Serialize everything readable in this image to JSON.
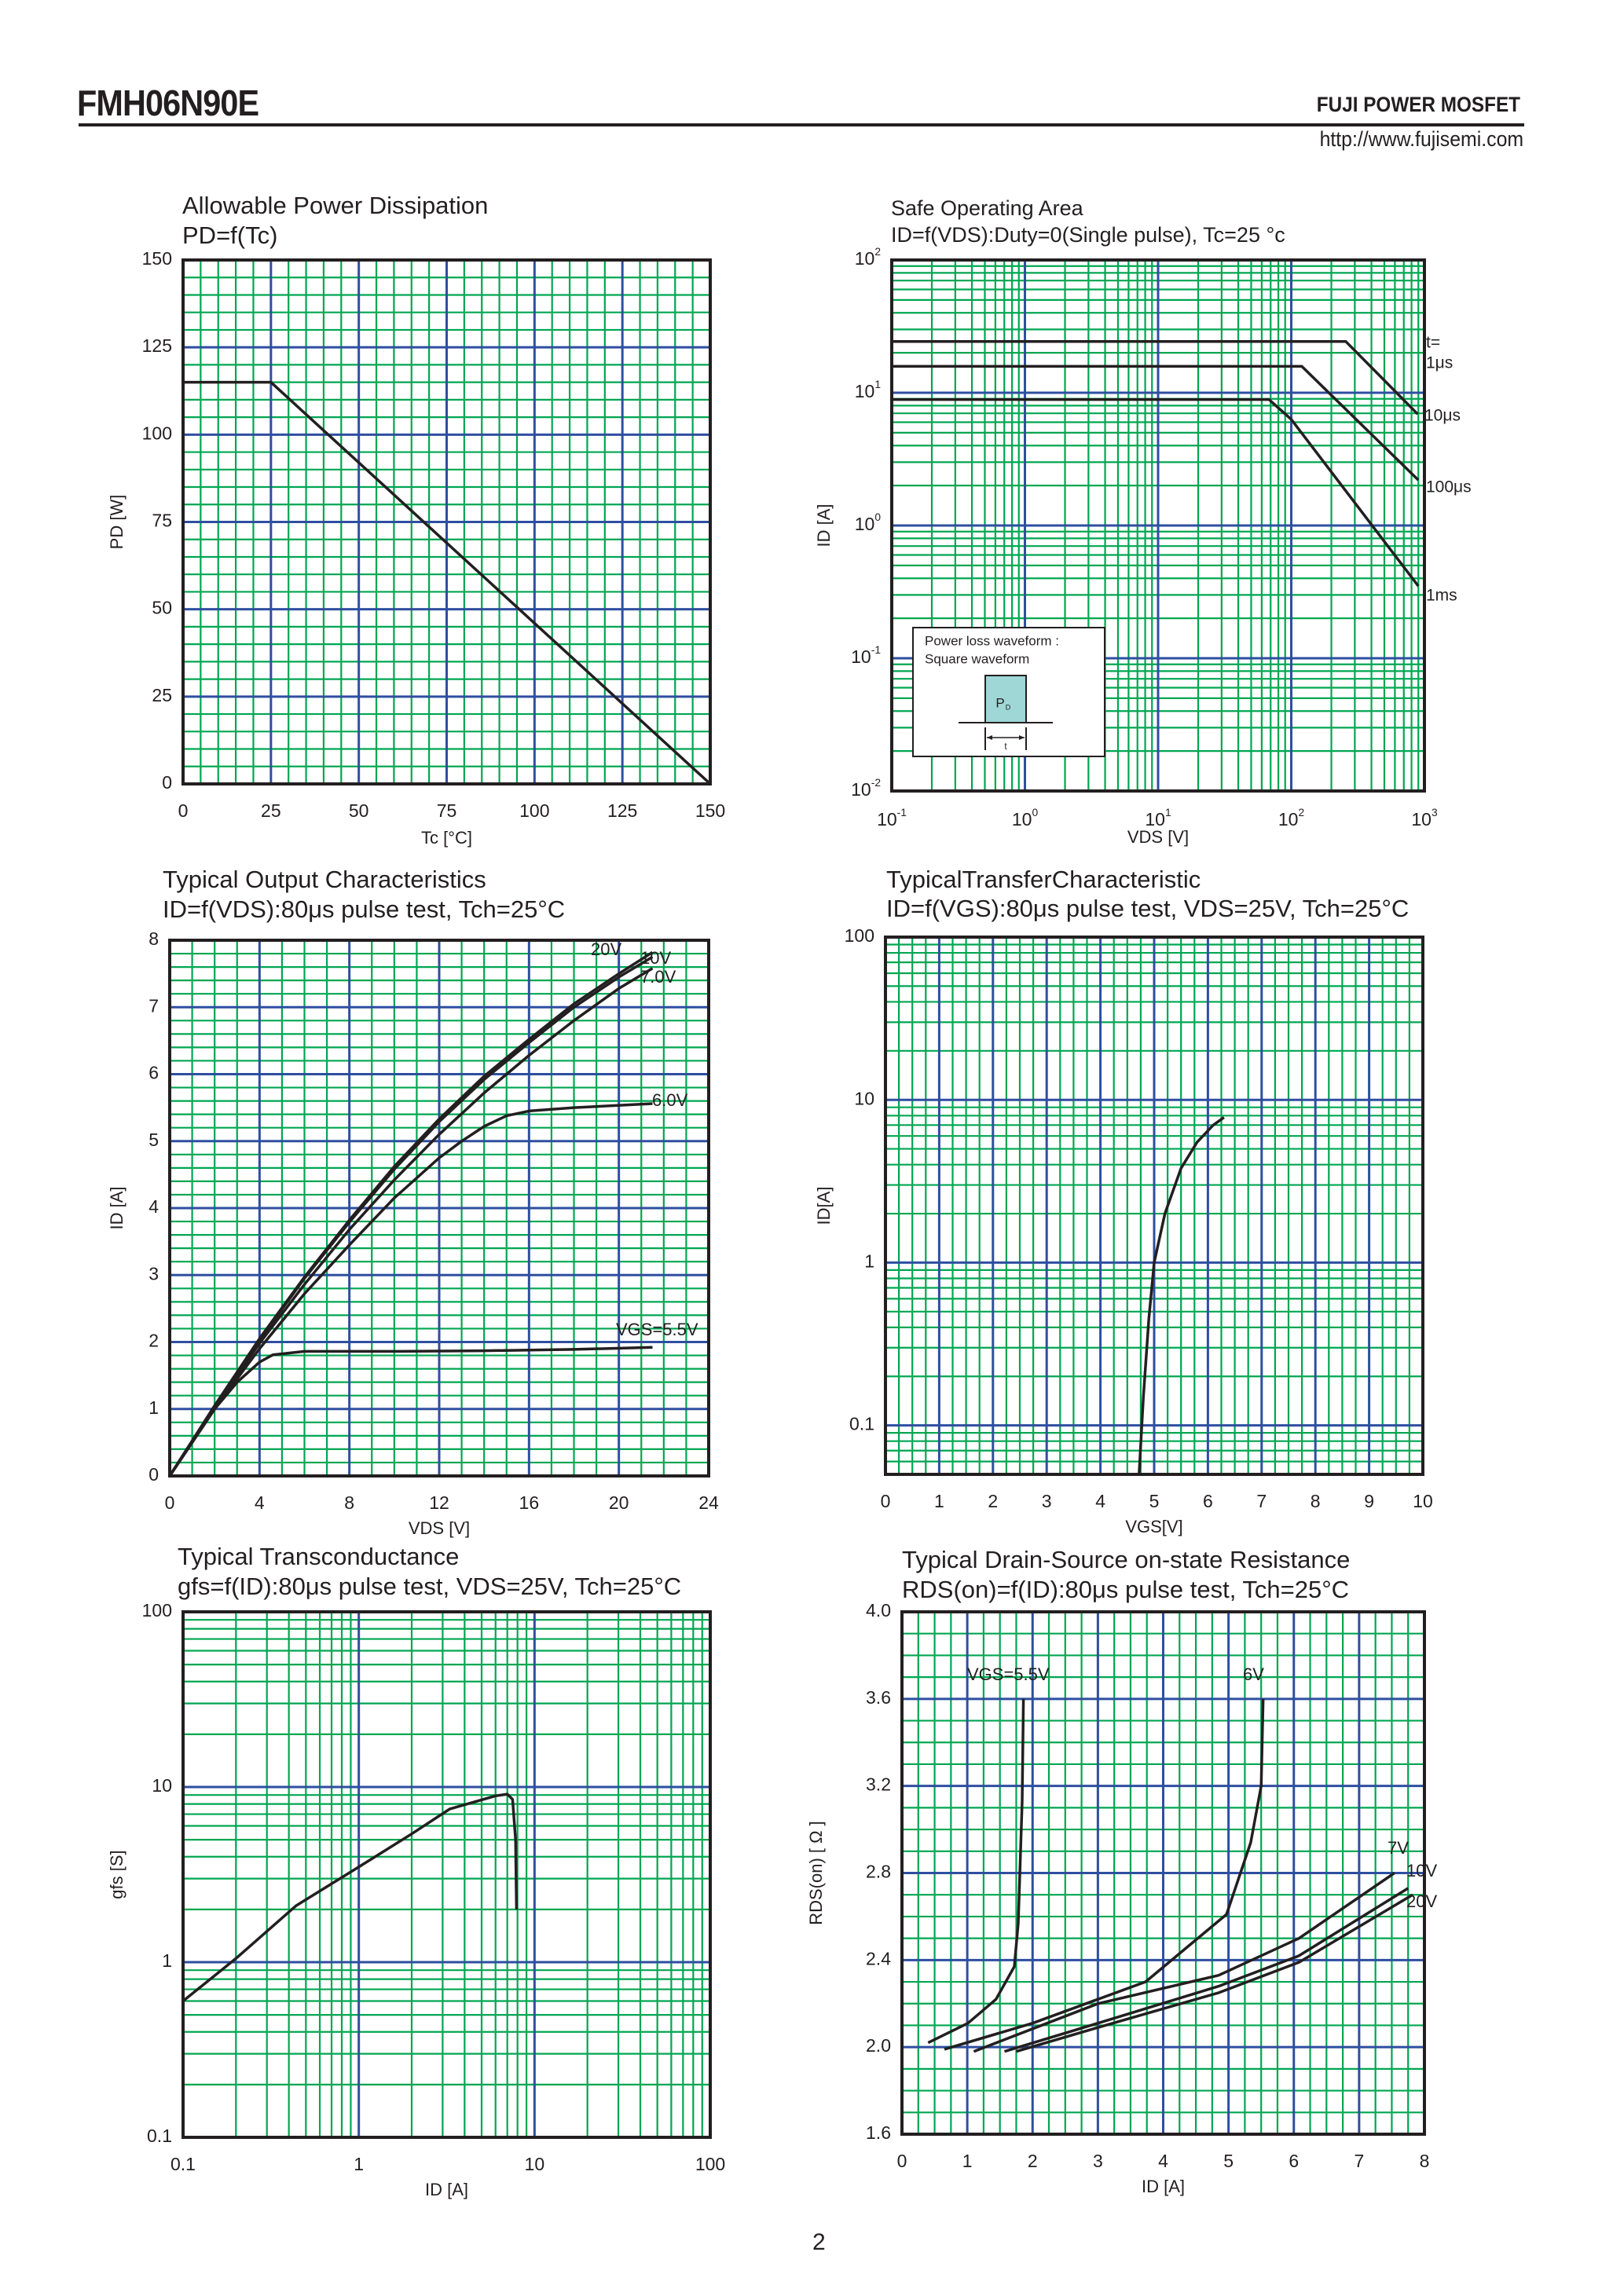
{
  "header": {
    "part_number": "FMH06N90E",
    "brand": "FUJI POWER MOSFET",
    "url": "http://www.fujisemi.com"
  },
  "page_number": "2",
  "colors": {
    "minor_grid": "#00a651",
    "major_grid": "#2e4fa0",
    "curve": "#231f20",
    "inset_pulse": "#9fd6d6"
  },
  "chart_data": [
    {
      "type": "line",
      "title": "Allowable Power Dissipation",
      "subtitle": "PD=f(Tc)",
      "xlabel": "Tc [°C]",
      "ylabel": "PD [W]",
      "xscale": "linear",
      "yscale": "linear",
      "xlim": [
        0,
        150
      ],
      "ylim": [
        0,
        150
      ],
      "grid": true,
      "xticks": [
        {
          "v": 0,
          "l": "0"
        },
        {
          "v": 25,
          "l": "25"
        },
        {
          "v": 50,
          "l": "50"
        },
        {
          "v": 75,
          "l": "75"
        },
        {
          "v": 100,
          "l": "100"
        },
        {
          "v": 125,
          "l": "125"
        },
        {
          "v": 150,
          "l": "150"
        }
      ],
      "yticks": [
        {
          "v": 0,
          "l": "0"
        },
        {
          "v": 25,
          "l": "25"
        },
        {
          "v": 50,
          "l": "50"
        },
        {
          "v": 75,
          "l": "75"
        },
        {
          "v": 100,
          "l": "100"
        },
        {
          "v": 125,
          "l": "125"
        },
        {
          "v": 150,
          "l": "150"
        }
      ],
      "series": [
        {
          "points": [
            [
              0,
              115
            ],
            [
              25,
              115
            ],
            [
              150,
              0
            ]
          ]
        }
      ]
    },
    {
      "type": "line",
      "title": "Safe Operating Area",
      "subtitle": "ID=f(VDS):Duty=0(Single pulse), Tc=25 °c",
      "xlabel": "VDS [V]",
      "ylabel": "ID [A]",
      "xscale": "log",
      "yscale": "log",
      "xlim": [
        0.1,
        1000
      ],
      "ylim": [
        0.01,
        100
      ],
      "grid": true,
      "xticks": [
        {
          "v": 0.1,
          "l": "10^-1"
        },
        {
          "v": 1,
          "l": "10^0"
        },
        {
          "v": 10,
          "l": "10^1"
        },
        {
          "v": 100,
          "l": "10^2"
        },
        {
          "v": 1000,
          "l": "10^3"
        }
      ],
      "yticks": [
        {
          "v": 0.01,
          "l": "10^-2"
        },
        {
          "v": 0.1,
          "l": "10^-1"
        },
        {
          "v": 1,
          "l": "10^0"
        },
        {
          "v": 10,
          "l": "10^1"
        },
        {
          "v": 100,
          "l": "10^2"
        }
      ],
      "series": [
        {
          "points": [
            [
              0.1,
              24.3
            ],
            [
              257,
              24.3
            ],
            [
              890,
              6.9
            ]
          ]
        },
        {
          "points": [
            [
              0.1,
              15.8
            ],
            [
              120,
              15.8
            ],
            [
              900,
              2.2
            ]
          ]
        },
        {
          "points": [
            [
              0.1,
              8.9
            ],
            [
              68,
              8.9
            ],
            [
              100,
              6.3
            ],
            [
              900,
              0.35
            ]
          ]
        }
      ],
      "annotations": [
        "t=",
        "1μs",
        "10μs",
        "100μs",
        "1ms"
      ],
      "inset": {
        "line1": "Power loss waveform :",
        "line2": "Square waveform",
        "pulse_label": "P",
        "pulse_sub": "D",
        "width_label": "t"
      }
    },
    {
      "type": "line",
      "title": "Typical Output Characteristics",
      "subtitle": "ID=f(VDS):80μs pulse test, Tch=25°C",
      "xlabel": "VDS [V]",
      "ylabel": "ID [A]",
      "xscale": "linear",
      "yscale": "linear",
      "xlim": [
        0,
        24
      ],
      "ylim": [
        0,
        8
      ],
      "grid": true,
      "xticks": [
        {
          "v": 0,
          "l": "0"
        },
        {
          "v": 4,
          "l": "4"
        },
        {
          "v": 8,
          "l": "8"
        },
        {
          "v": 12,
          "l": "12"
        },
        {
          "v": 16,
          "l": "16"
        },
        {
          "v": 20,
          "l": "20"
        },
        {
          "v": 24,
          "l": "24"
        }
      ],
      "yticks": [
        {
          "v": 0,
          "l": "0"
        },
        {
          "v": 1,
          "l": "1"
        },
        {
          "v": 2,
          "l": "2"
        },
        {
          "v": 3,
          "l": "3"
        },
        {
          "v": 4,
          "l": "4"
        },
        {
          "v": 5,
          "l": "5"
        },
        {
          "v": 6,
          "l": "6"
        },
        {
          "v": 7,
          "l": "7"
        },
        {
          "v": 8,
          "l": "8"
        }
      ],
      "series": [
        {
          "name": "20V",
          "points": [
            [
              0,
              0
            ],
            [
              2,
              1.05
            ],
            [
              4,
              2.05
            ],
            [
              6,
              2.97
            ],
            [
              8,
              3.82
            ],
            [
              10,
              4.62
            ],
            [
              12,
              5.33
            ],
            [
              14,
              5.97
            ],
            [
              16,
              6.52
            ],
            [
              18,
              7.05
            ],
            [
              20,
              7.5
            ],
            [
              21.5,
              7.82
            ]
          ]
        },
        {
          "name": "10V",
          "points": [
            [
              0,
              0
            ],
            [
              2,
              1.04
            ],
            [
              4,
              2.03
            ],
            [
              6,
              2.95
            ],
            [
              8,
              3.79
            ],
            [
              10,
              4.58
            ],
            [
              12,
              5.29
            ],
            [
              14,
              5.92
            ],
            [
              16,
              6.47
            ],
            [
              18,
              7.0
            ],
            [
              20,
              7.45
            ],
            [
              21.5,
              7.75
            ]
          ]
        },
        {
          "name": "7.0V",
          "points": [
            [
              0,
              0
            ],
            [
              2,
              1.02
            ],
            [
              4,
              1.98
            ],
            [
              6,
              2.86
            ],
            [
              8,
              3.68
            ],
            [
              10,
              4.42
            ],
            [
              12,
              5.1
            ],
            [
              14,
              5.72
            ],
            [
              16,
              6.28
            ],
            [
              18,
              6.8
            ],
            [
              20,
              7.28
            ],
            [
              21.5,
              7.58
            ]
          ]
        },
        {
          "name": "6.0V",
          "points": [
            [
              0,
              0
            ],
            [
              2,
              1.0
            ],
            [
              4,
              1.9
            ],
            [
              6,
              2.72
            ],
            [
              8,
              3.45
            ],
            [
              10,
              4.15
            ],
            [
              12,
              4.75
            ],
            [
              13,
              5.0
            ],
            [
              14,
              5.22
            ],
            [
              15,
              5.38
            ],
            [
              16,
              5.45
            ],
            [
              18,
              5.5
            ],
            [
              21.5,
              5.56
            ]
          ]
        },
        {
          "name": "VGS=5.5V",
          "points": [
            [
              0,
              0
            ],
            [
              1,
              0.5
            ],
            [
              2,
              1.0
            ],
            [
              3,
              1.4
            ],
            [
              4,
              1.7
            ],
            [
              4.6,
              1.81
            ],
            [
              6,
              1.86
            ],
            [
              10,
              1.86
            ],
            [
              14,
              1.87
            ],
            [
              18,
              1.89
            ],
            [
              21.5,
              1.92
            ]
          ]
        }
      ]
    },
    {
      "type": "line",
      "title": "TypicalTransferCharacteristic",
      "subtitle": "ID=f(VGS):80μs pulse test, VDS=25V, Tch=25°C",
      "xlabel": "VGS[V]",
      "ylabel": "ID[A]",
      "xscale": "linear",
      "yscale": "log",
      "xlim": [
        0,
        10
      ],
      "ylim": [
        0.05,
        100
      ],
      "grid": true,
      "xticks": [
        {
          "v": 0,
          "l": "0"
        },
        {
          "v": 1,
          "l": "1"
        },
        {
          "v": 2,
          "l": "2"
        },
        {
          "v": 3,
          "l": "3"
        },
        {
          "v": 4,
          "l": "4"
        },
        {
          "v": 5,
          "l": "5"
        },
        {
          "v": 6,
          "l": "6"
        },
        {
          "v": 7,
          "l": "7"
        },
        {
          "v": 8,
          "l": "8"
        },
        {
          "v": 9,
          "l": "9"
        },
        {
          "v": 10,
          "l": "10"
        }
      ],
      "yticks": [
        {
          "v": 0.1,
          "l": "0.1"
        },
        {
          "v": 1,
          "l": "1"
        },
        {
          "v": 10,
          "l": "10"
        },
        {
          "v": 100,
          "l": "100"
        }
      ],
      "series": [
        {
          "points": [
            [
              4.72,
              0.05
            ],
            [
              4.8,
              0.15
            ],
            [
              4.9,
              0.45
            ],
            [
              5.0,
              1.0
            ],
            [
              5.2,
              2.0
            ],
            [
              5.5,
              3.8
            ],
            [
              5.8,
              5.5
            ],
            [
              6.1,
              7.0
            ],
            [
              6.3,
              7.8
            ]
          ]
        }
      ]
    },
    {
      "type": "line",
      "title": "Typical Transconductance",
      "subtitle": "gfs=f(ID):80μs pulse test, VDS=25V, Tch=25°C",
      "xlabel": "ID [A]",
      "ylabel": "gfs [S]",
      "xscale": "log",
      "yscale": "log",
      "xlim": [
        0.1,
        100
      ],
      "ylim": [
        0.1,
        100
      ],
      "grid": true,
      "xticks": [
        {
          "v": 0.1,
          "l": "0.1"
        },
        {
          "v": 1,
          "l": "1"
        },
        {
          "v": 10,
          "l": "10"
        },
        {
          "v": 100,
          "l": "100"
        }
      ],
      "yticks": [
        {
          "v": 0.1,
          "l": "0.1"
        },
        {
          "v": 1,
          "l": "1"
        },
        {
          "v": 10,
          "l": "10"
        },
        {
          "v": 100,
          "l": "100"
        }
      ],
      "series": [
        {
          "points": [
            [
              0.1,
              0.6
            ],
            [
              0.2,
              1.05
            ],
            [
              0.44,
              2.1
            ],
            [
              1,
              3.5
            ],
            [
              2,
              5.4
            ],
            [
              3.3,
              7.5
            ],
            [
              6,
              8.9
            ],
            [
              7.0,
              9.1
            ],
            [
              7.5,
              8.5
            ],
            [
              7.8,
              5
            ],
            [
              7.9,
              2
            ]
          ]
        }
      ]
    },
    {
      "type": "line",
      "title": "Typical Drain-Source on-state Resistance",
      "subtitle": "RDS(on)=f(ID):80μs pulse test, Tch=25°C",
      "xlabel": "ID [A]",
      "ylabel": "RDS(on) [ Ω ]",
      "xscale": "linear",
      "yscale": "linear",
      "xlim": [
        0,
        8
      ],
      "ylim": [
        1.6,
        4.0
      ],
      "grid": true,
      "xticks": [
        {
          "v": 0,
          "l": "0"
        },
        {
          "v": 1,
          "l": "1"
        },
        {
          "v": 2,
          "l": "2"
        },
        {
          "v": 3,
          "l": "3"
        },
        {
          "v": 4,
          "l": "4"
        },
        {
          "v": 5,
          "l": "5"
        },
        {
          "v": 6,
          "l": "6"
        },
        {
          "v": 7,
          "l": "7"
        },
        {
          "v": 8,
          "l": "8"
        }
      ],
      "yticks": [
        {
          "v": 1.6,
          "l": "1.6"
        },
        {
          "v": 2.0,
          "l": "2.0"
        },
        {
          "v": 2.4,
          "l": "2.4"
        },
        {
          "v": 2.8,
          "l": "2.8"
        },
        {
          "v": 3.2,
          "l": "3.2"
        },
        {
          "v": 3.6,
          "l": "3.6"
        },
        {
          "v": 4.0,
          "l": "4.0"
        }
      ],
      "series": [
        {
          "name": "VGS=5.5V",
          "points": [
            [
              0.4,
              2.02
            ],
            [
              1.01,
              2.11
            ],
            [
              1.44,
              2.22
            ],
            [
              1.72,
              2.37
            ],
            [
              1.78,
              2.57
            ],
            [
              1.84,
              3.13
            ],
            [
              1.86,
              3.6
            ]
          ]
        },
        {
          "name": "6V",
          "points": [
            [
              0.65,
              1.99
            ],
            [
              2.0,
              2.11
            ],
            [
              3.73,
              2.3
            ],
            [
              4.97,
              2.61
            ],
            [
              5.34,
              2.94
            ],
            [
              5.5,
              3.2
            ],
            [
              5.53,
              3.6
            ]
          ]
        },
        {
          "name": "7V",
          "points": [
            [
              1.1,
              1.98
            ],
            [
              3.0,
              2.2
            ],
            [
              4.85,
              2.33
            ],
            [
              6.08,
              2.5
            ],
            [
              7.54,
              2.8
            ]
          ]
        },
        {
          "name": "10V",
          "points": [
            [
              1.57,
              1.98
            ],
            [
              3.0,
              2.11
            ],
            [
              4.85,
              2.28
            ],
            [
              6.08,
              2.42
            ],
            [
              7.75,
              2.73
            ]
          ]
        },
        {
          "name": "20V",
          "points": [
            [
              1.75,
              1.98
            ],
            [
              3.0,
              2.09
            ],
            [
              4.85,
              2.25
            ],
            [
              6.08,
              2.39
            ],
            [
              7.82,
              2.7
            ]
          ]
        }
      ]
    }
  ]
}
